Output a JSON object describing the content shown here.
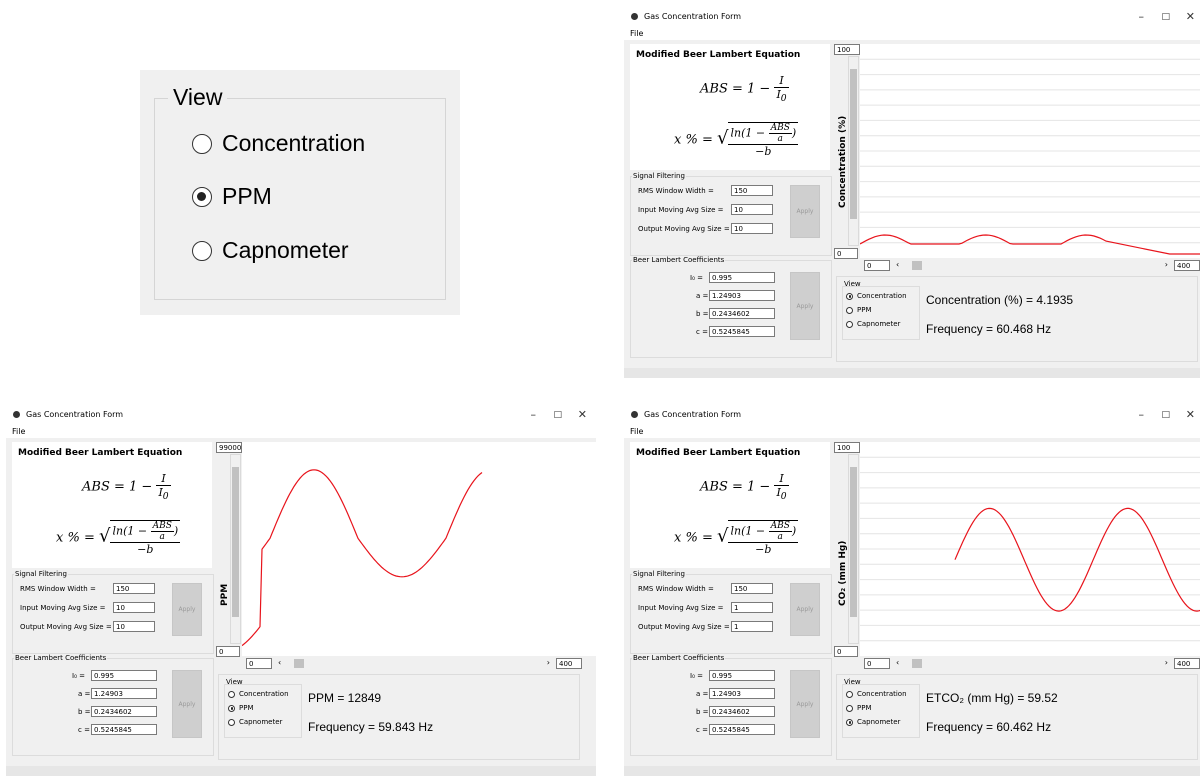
{
  "zoom": {
    "group_title": "View",
    "options": [
      "Concentration",
      "PPM",
      "Capnometer"
    ],
    "selected": 1
  },
  "window_title": "Gas Concentration Form",
  "menu_file": "File",
  "eq_heading": "Modified Beer Lambert Equation",
  "signal_filtering": "Signal Filtering",
  "rms_label": "RMS Window Width =",
  "input_avg_label": "Input Moving Avg Size =",
  "output_avg_label": "Output Moving Avg Size =",
  "apply": "Apply",
  "bl_coeffs": "Beer Lambert Coefficients",
  "coef_labels": [
    "I₀ =",
    "a =",
    "b =",
    "c ="
  ],
  "coef_values": [
    "0.995",
    "1.24903",
    "0.2434602",
    "0.5245845"
  ],
  "view_title": "View",
  "view_options": [
    "Concentration",
    "PPM",
    "Capnometer"
  ],
  "xmin": "0",
  "xmax": "400",
  "windows": [
    {
      "name": "concentration",
      "rms": "150",
      "in_avg": "10",
      "out_avg": "10",
      "ymax": "100",
      "ymin": "0",
      "ylabel": "Concentration (%)",
      "selected": 0,
      "reading": "Concentration (%) = 4.1935",
      "frequency": "Frequency = 60.468 Hz"
    },
    {
      "name": "ppm",
      "rms": "150",
      "in_avg": "10",
      "out_avg": "10",
      "ymax": "99000",
      "ymin": "0",
      "ylabel": "PPM",
      "selected": 1,
      "reading": "PPM = 12849",
      "frequency": "Frequency = 59.843 Hz"
    },
    {
      "name": "capnometer",
      "rms": "150",
      "in_avg": "1",
      "out_avg": "1",
      "ymax": "100",
      "ymin": "0",
      "ylabel": "CO₂ (mm Hg)",
      "selected": 2,
      "reading": "ETCO₂ (mm Hg) = 59.52",
      "frequency": "Frequency = 60.462 Hz"
    }
  ],
  "colors": {
    "trace": "#e8141c",
    "window_bg": "#f0f0f0",
    "button_disabled": "#cfcfcf"
  },
  "icons": {
    "minimize": "minimize-icon",
    "maximize": "maximize-icon",
    "close": "close-icon"
  }
}
